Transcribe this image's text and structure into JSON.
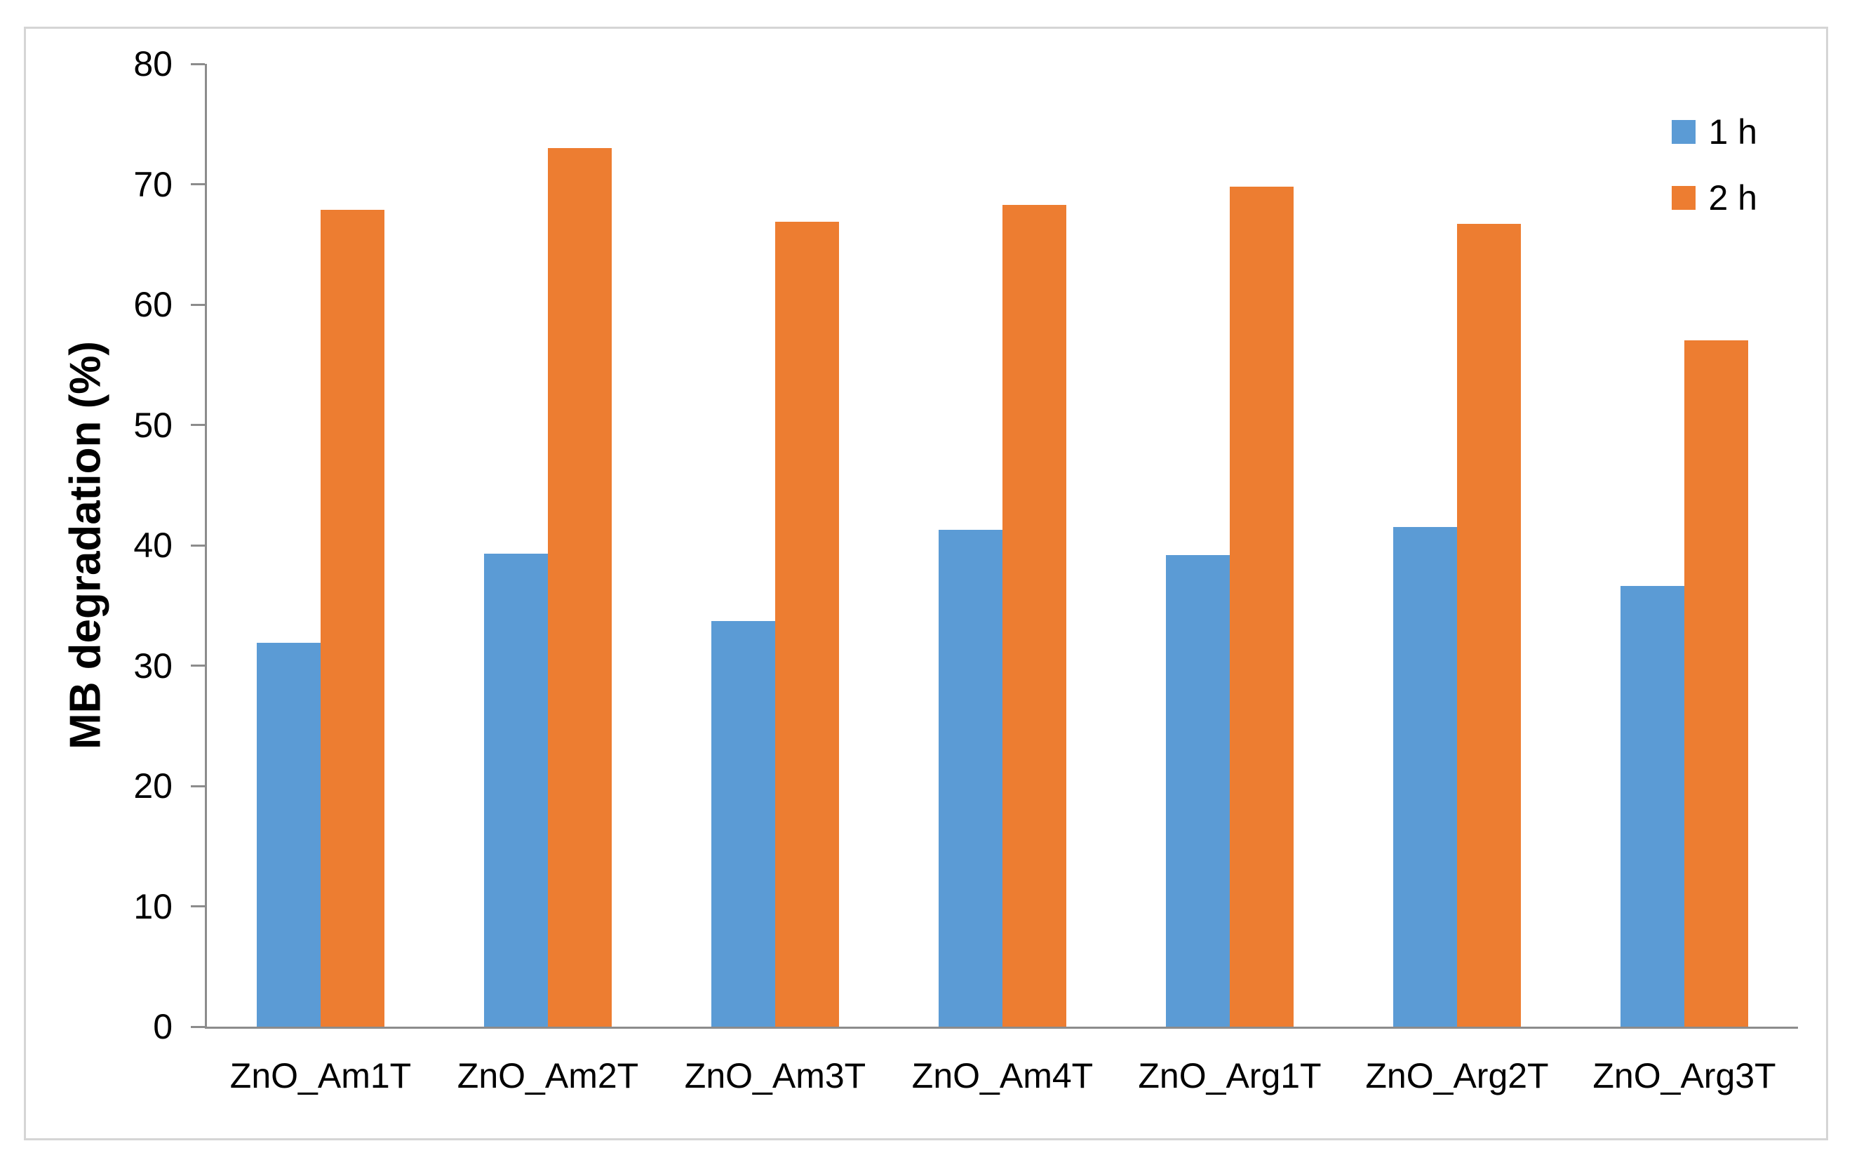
{
  "figure": {
    "background": "#FFFFFF",
    "border_color": "#D5D5D5"
  },
  "chart_data": {
    "type": "bar",
    "title": "",
    "ylabel": "MB degradation (%)",
    "xlabel": "",
    "ylim": [
      0,
      80
    ],
    "yticks": [
      0,
      10,
      20,
      30,
      40,
      50,
      60,
      70,
      80
    ],
    "grid": false,
    "legend_position": "top-right",
    "axis_color": "#8C8C8C",
    "tick_label_color": "#000000",
    "categories": [
      "ZnO_Am1T",
      "ZnO_Am2T",
      "ZnO_Am3T",
      "ZnO_Am4T",
      "ZnO_Arg1T",
      "ZnO_Arg2T",
      "ZnO_Arg3T"
    ],
    "series": [
      {
        "name": "1 h",
        "color": "#5B9BD5",
        "values": [
          31.9,
          39.3,
          33.7,
          41.3,
          39.2,
          41.5,
          36.6
        ]
      },
      {
        "name": "2 h",
        "color": "#ED7D31",
        "values": [
          67.9,
          73.0,
          66.9,
          68.3,
          69.8,
          66.7,
          57.0
        ]
      }
    ]
  }
}
